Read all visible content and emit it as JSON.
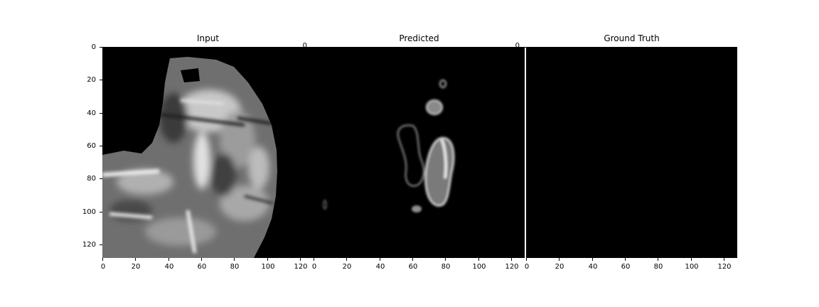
{
  "figure": {
    "panels": [
      {
        "id": "input",
        "title": "Input",
        "x_ticks": [
          "0",
          "20",
          "40",
          "60",
          "80",
          "100",
          "120"
        ],
        "y_ticks": [
          "0",
          "20",
          "40",
          "60",
          "80",
          "100",
          "120"
        ]
      },
      {
        "id": "predicted",
        "title": "Predicted",
        "x_ticks": [
          "0",
          "20",
          "40",
          "60",
          "80",
          "100",
          "120"
        ],
        "y_ticks": [
          "0"
        ]
      },
      {
        "id": "ground-truth",
        "title": "Ground Truth",
        "x_ticks": [
          "0",
          "20",
          "40",
          "60",
          "80",
          "100",
          "120"
        ],
        "y_ticks": [
          "0"
        ]
      }
    ],
    "axis_range": [
      0,
      128
    ],
    "colormap": "gray",
    "background_color": "#000000"
  }
}
